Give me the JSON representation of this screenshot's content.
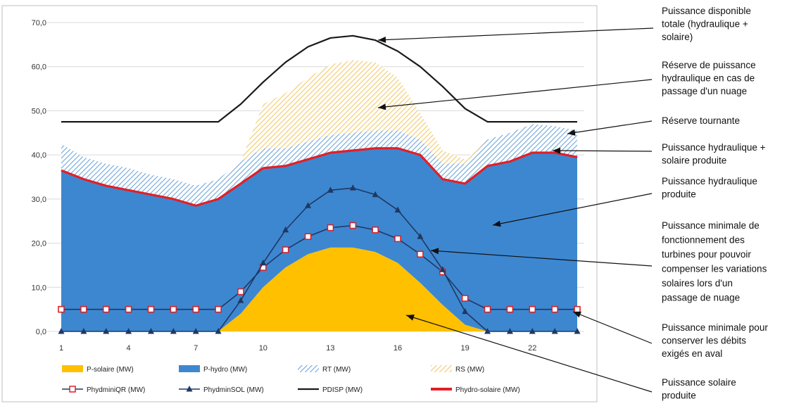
{
  "colors": {
    "solaire": "#FFC000",
    "hydro": "#3D87D0",
    "rt_stripe": "#6FA5DA",
    "rs_stripe": "#F3CD72",
    "pdisp": "#1a1a1a",
    "phydro_solaire": "#E21F26",
    "miniqr_marker": "#D7232B",
    "minisol": "#1F3864"
  },
  "chart_data": {
    "type": "area",
    "x": [
      1,
      2,
      3,
      4,
      5,
      6,
      7,
      8,
      9,
      10,
      11,
      12,
      13,
      14,
      15,
      16,
      17,
      18,
      19,
      20,
      21,
      22,
      23,
      24
    ],
    "xticks": [
      "1",
      "4",
      "7",
      "10",
      "13",
      "16",
      "19",
      "22"
    ],
    "xtick_positions": [
      1,
      4,
      7,
      10,
      13,
      16,
      19,
      22
    ],
    "ylim": [
      0,
      70
    ],
    "yticks": [
      "0,0",
      "10,0",
      "20,0",
      "30,0",
      "40,0",
      "50,0",
      "60,0",
      "70,0"
    ],
    "grid": "horizontal",
    "legend_position": "bottom",
    "series": [
      {
        "name": "P-solaire (MW)",
        "style": "area",
        "values": [
          0,
          0,
          0,
          0,
          0,
          0,
          0,
          0,
          4,
          10,
          14.5,
          17.5,
          19,
          19,
          18,
          15.5,
          11,
          6,
          1.5,
          0,
          0,
          0,
          0,
          0
        ]
      },
      {
        "name": "P-hydro (MW)",
        "style": "area",
        "values": [
          36.5,
          34.5,
          33,
          32,
          31,
          30,
          28.5,
          30,
          29.5,
          27,
          23,
          21.5,
          21.5,
          22,
          23.5,
          26,
          29,
          28.5,
          32,
          37.5,
          38.5,
          40.5,
          40.5,
          39.5
        ]
      },
      {
        "name": "RT (MW)",
        "style": "hatched-area",
        "values": [
          6,
          5,
          5,
          5,
          4.5,
          4.5,
          4.5,
          4.5,
          5,
          4.5,
          4,
          4,
          4,
          4,
          4,
          4,
          3.5,
          3.5,
          4.5,
          6,
          6.5,
          6.5,
          6,
          6
        ]
      },
      {
        "name": "RS (MW)",
        "style": "hatched-area",
        "values": [
          0,
          0,
          0,
          0,
          0,
          0,
          0,
          0,
          0,
          10,
          12.5,
          14.5,
          16,
          16.5,
          15.5,
          12,
          6,
          3,
          1,
          0,
          0,
          0,
          0,
          0
        ]
      },
      {
        "name": "PhydminiQR (MW)",
        "style": "line-square",
        "values": [
          5,
          5,
          5,
          5,
          5,
          5,
          5,
          5,
          9,
          14.5,
          18.5,
          21.5,
          23.5,
          24,
          23,
          21,
          17.5,
          13.5,
          7.5,
          5,
          5,
          5,
          5,
          5
        ]
      },
      {
        "name": "PhydminSOL (MW)",
        "style": "line-triangle",
        "values": [
          0,
          0,
          0,
          0,
          0,
          0,
          0,
          0,
          7,
          15.5,
          23,
          28.5,
          32,
          32.5,
          31,
          27.5,
          21.5,
          14,
          4.5,
          0,
          0,
          0,
          0,
          0
        ]
      },
      {
        "name": "PDISP (MW)",
        "style": "line",
        "values": [
          47.5,
          47.5,
          47.5,
          47.5,
          47.5,
          47.5,
          47.5,
          47.5,
          51.5,
          56.5,
          61,
          64.5,
          66.5,
          67,
          66,
          63.5,
          60,
          55.5,
          50.5,
          47.5,
          47.5,
          47.5,
          47.5,
          47.5
        ]
      },
      {
        "name": "Phydro-solaire (MW)",
        "style": "line-thick",
        "values": [
          36.5,
          34.5,
          33,
          32,
          31,
          30,
          28.5,
          30,
          33.5,
          37,
          37.5,
          39,
          40.5,
          41,
          41.5,
          41.5,
          40,
          34.5,
          33.5,
          37.5,
          38.5,
          40.5,
          40.5,
          39.5
        ]
      }
    ]
  },
  "annotations": [
    {
      "id": "pdisp",
      "lines": [
        "Puissance disponible",
        "totale (hydraulique +",
        "solaire)"
      ]
    },
    {
      "id": "rs",
      "lines": [
        "Réserve  de puissance",
        "hydraulique  en cas de",
        "passage d'un nuage"
      ]
    },
    {
      "id": "rt",
      "lines": [
        "Réserve  tournante"
      ]
    },
    {
      "id": "hs",
      "lines": [
        "Puissance hydraulique  +",
        "solaire produite"
      ]
    },
    {
      "id": "hydro",
      "lines": [
        "Puissance hydraulique",
        "produite"
      ]
    },
    {
      "id": "minisol",
      "lines": [
        "Puissance minimale de",
        "fonctionnement des",
        "turbines pour pouvoir",
        "compenser les variations",
        "solaires lors d'un",
        "passage de nuage"
      ]
    },
    {
      "id": "miniqr",
      "lines": [
        "Puissance minimale pour",
        "conserver  les débits",
        "exigés en aval"
      ]
    },
    {
      "id": "solaire",
      "lines": [
        "Puissance solaire",
        "produite"
      ]
    }
  ]
}
